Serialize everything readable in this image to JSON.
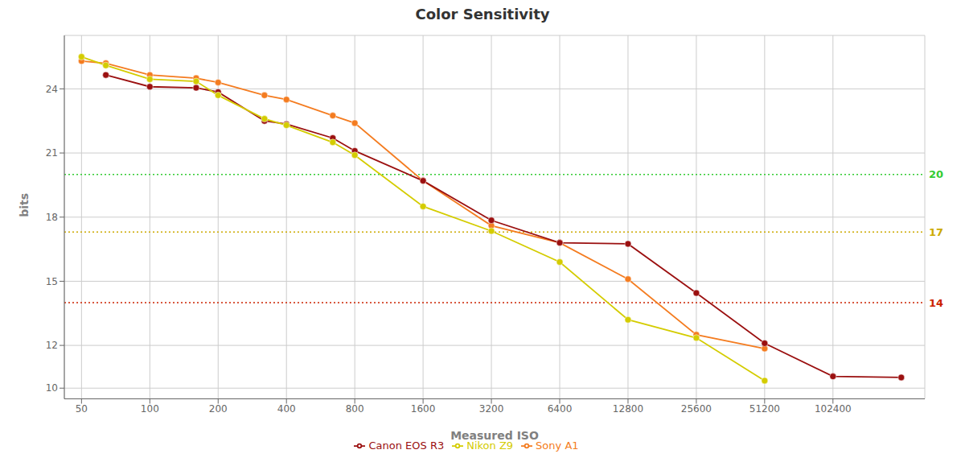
{
  "chart_data": {
    "type": "line",
    "title": "Color Sensitivity",
    "x_label": "Measured ISO",
    "y_label": "bits",
    "log": "x",
    "grid": true,
    "legend": "bottom",
    "marker": "circle",
    "xlim": [
      42,
      260000
    ],
    "ylim": [
      9.5,
      26.5
    ],
    "xticks": [
      50,
      100,
      200,
      400,
      800,
      1600,
      3200,
      6400,
      12800,
      25600,
      51200,
      102400
    ],
    "yticks": [
      10,
      12,
      15,
      18,
      21,
      24
    ],
    "series": [
      {
        "name": "Sony A1",
        "color": "#f47c20",
        "x": [
          50,
          64,
          100,
          160,
          200,
          320,
          400,
          640,
          800,
          1600,
          3200,
          6400,
          12800,
          25600,
          51200
        ],
        "values": [
          25.3,
          25.2,
          24.65,
          24.5,
          24.3,
          23.7,
          23.5,
          22.75,
          22.4,
          19.7,
          17.6,
          16.8,
          15.1,
          12.5,
          11.85
        ]
      },
      {
        "name": "Canon EOS R3",
        "color": "#9b1010",
        "x": [
          64,
          100,
          160,
          200,
          320,
          400,
          640,
          800,
          1600,
          3200,
          6400,
          12800,
          25600,
          51200,
          102400,
          204800
        ],
        "values": [
          24.65,
          24.1,
          24.05,
          23.85,
          22.5,
          22.35,
          21.7,
          21.1,
          19.7,
          17.85,
          16.8,
          16.75,
          14.45,
          12.1,
          10.55,
          10.5
        ]
      },
      {
        "name": "Nikon Z9",
        "color": "#d4cc00",
        "x": [
          50,
          64,
          100,
          160,
          200,
          320,
          400,
          640,
          800,
          1600,
          3200,
          6400,
          12800,
          25600,
          51200
        ],
        "values": [
          25.5,
          25.1,
          24.45,
          24.35,
          23.7,
          22.6,
          22.3,
          21.5,
          20.9,
          18.5,
          17.35,
          15.9,
          13.2,
          12.35,
          10.35
        ]
      }
    ],
    "annotations": [
      {
        "y": 20.0,
        "label": "20",
        "color": "#33cc33",
        "line_style": "dotted"
      },
      {
        "y": 17.3,
        "label": "17",
        "color": "#ccaa00",
        "line_style": "dotted"
      },
      {
        "y": 14.0,
        "label": "14",
        "color": "#cc2200",
        "line_style": "dotted"
      }
    ]
  }
}
